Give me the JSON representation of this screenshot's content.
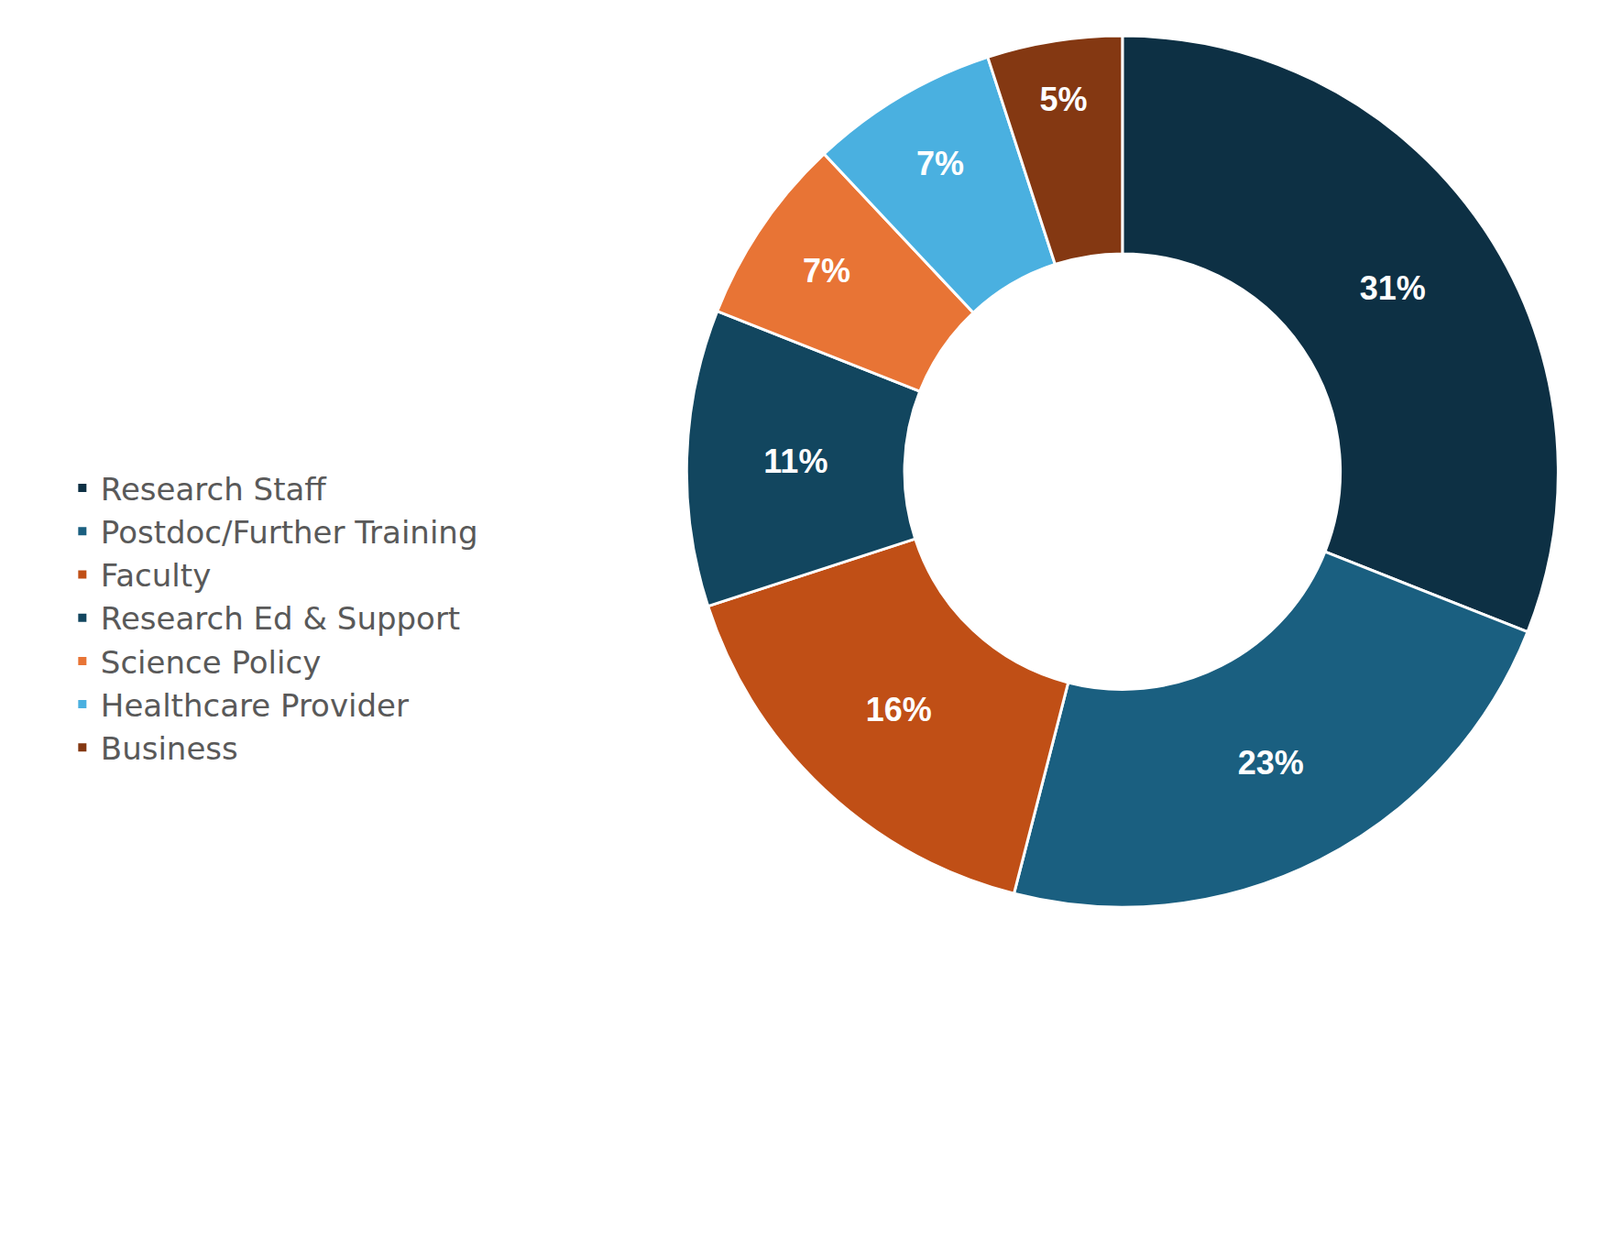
{
  "chart_data": {
    "type": "donut",
    "categories": [
      "Research Staff",
      "Postdoc/Further Training",
      "Faculty",
      "Research Ed & Support",
      "Science Policy",
      "Healthcare Provider",
      "Business"
    ],
    "values": [
      31,
      23,
      16,
      11,
      7,
      7,
      5
    ],
    "value_labels": [
      "31%",
      "23%",
      "16%",
      "11%",
      "7%",
      "7%",
      "5%"
    ],
    "colors": [
      "#0d3044",
      "#1a5f80",
      "#c04f16",
      "#12465f",
      "#e87435",
      "#4ab0e0",
      "#843812"
    ],
    "data_labels": true,
    "legend": "left"
  }
}
